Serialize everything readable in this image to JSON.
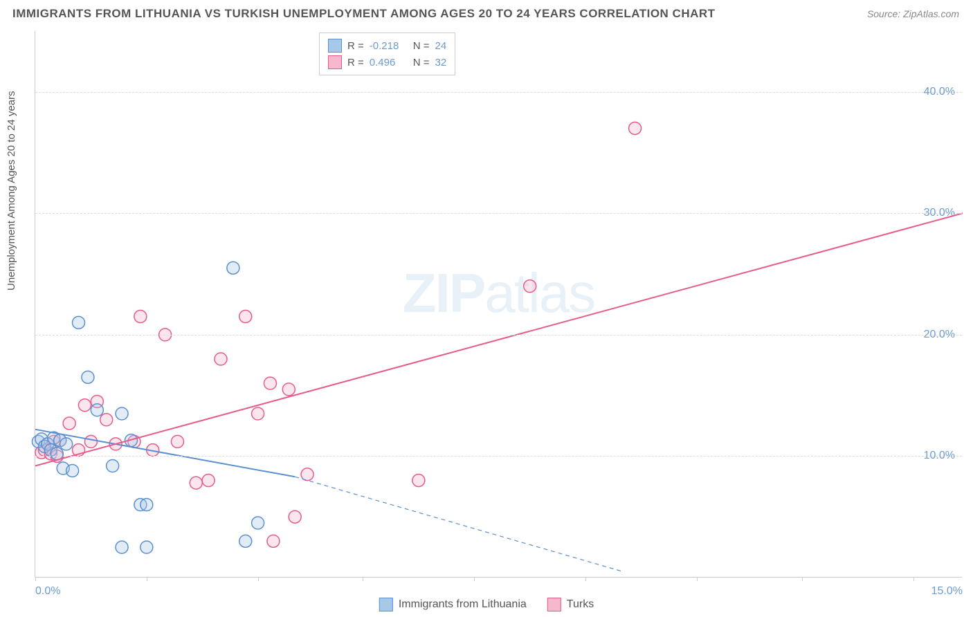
{
  "title": "IMMIGRANTS FROM LITHUANIA VS TURKISH UNEMPLOYMENT AMONG AGES 20 TO 24 YEARS CORRELATION CHART",
  "source": "Source: ZipAtlas.com",
  "ylabel": "Unemployment Among Ages 20 to 24 years",
  "watermark_a": "ZIP",
  "watermark_b": "atlas",
  "chart": {
    "type": "scatter",
    "background_color": "#ffffff",
    "grid_color": "#dddddd",
    "axis_color": "#cccccc",
    "xlim": [
      0,
      15
    ],
    "ylim": [
      0,
      45
    ],
    "x_ticks": [
      0,
      1.8,
      3.6,
      5.3,
      7.1,
      8.9,
      10.7,
      12.4,
      14.2
    ],
    "x_tick_labels": {
      "0": "0.0%",
      "15": "15.0%"
    },
    "y_gridlines": [
      10,
      20,
      30,
      40
    ],
    "y_tick_labels": {
      "10": "10.0%",
      "20": "20.0%",
      "30": "30.0%",
      "40": "40.0%"
    },
    "marker_radius": 9,
    "marker_stroke_width": 1.5,
    "marker_fill_opacity": 0.35,
    "line_width": 2,
    "series": [
      {
        "name": "Immigrants from Lithuania",
        "color_stroke": "#5a8fd0",
        "color_fill": "#a8c8e8",
        "r_value": "-0.218",
        "n_value": "24",
        "points": [
          [
            0.05,
            11.2
          ],
          [
            0.1,
            11.4
          ],
          [
            0.15,
            10.8
          ],
          [
            0.2,
            11.0
          ],
          [
            0.25,
            10.5
          ],
          [
            0.3,
            11.5
          ],
          [
            0.35,
            10.2
          ],
          [
            0.4,
            11.3
          ],
          [
            0.45,
            9.0
          ],
          [
            0.5,
            11.0
          ],
          [
            0.6,
            8.8
          ],
          [
            0.7,
            21.0
          ],
          [
            0.85,
            16.5
          ],
          [
            1.0,
            13.8
          ],
          [
            1.25,
            9.2
          ],
          [
            1.4,
            13.5
          ],
          [
            1.4,
            2.5
          ],
          [
            1.55,
            11.3
          ],
          [
            1.7,
            6.0
          ],
          [
            1.8,
            6.0
          ],
          [
            1.8,
            2.5
          ],
          [
            3.2,
            25.5
          ],
          [
            3.4,
            3.0
          ],
          [
            3.6,
            4.5
          ]
        ],
        "trend": {
          "x1": 0,
          "y1": 12.2,
          "x2": 4.2,
          "y2": 8.3,
          "x2_ext": 9.5,
          "y2_ext": 0.5
        }
      },
      {
        "name": "Turks",
        "color_stroke": "#e85a8a",
        "color_fill": "#f5b8cc",
        "r_value": "0.496",
        "n_value": "32",
        "points": [
          [
            0.1,
            10.3
          ],
          [
            0.15,
            10.5
          ],
          [
            0.2,
            11.0
          ],
          [
            0.25,
            10.2
          ],
          [
            0.3,
            11.2
          ],
          [
            0.35,
            10.0
          ],
          [
            0.4,
            11.3
          ],
          [
            0.55,
            12.7
          ],
          [
            0.7,
            10.5
          ],
          [
            0.8,
            14.2
          ],
          [
            0.9,
            11.2
          ],
          [
            1.0,
            14.5
          ],
          [
            1.15,
            13.0
          ],
          [
            1.3,
            11.0
          ],
          [
            1.6,
            11.2
          ],
          [
            1.7,
            21.5
          ],
          [
            1.9,
            10.5
          ],
          [
            2.1,
            20.0
          ],
          [
            2.3,
            11.2
          ],
          [
            2.6,
            7.8
          ],
          [
            2.8,
            8.0
          ],
          [
            3.0,
            18.0
          ],
          [
            3.4,
            21.5
          ],
          [
            3.6,
            13.5
          ],
          [
            3.8,
            16.0
          ],
          [
            3.85,
            3.0
          ],
          [
            4.1,
            15.5
          ],
          [
            4.2,
            5.0
          ],
          [
            4.4,
            8.5
          ],
          [
            6.2,
            8.0
          ],
          [
            8.0,
            24.0
          ],
          [
            9.7,
            37.0
          ]
        ],
        "trend": {
          "x1": 0,
          "y1": 9.2,
          "x2": 15,
          "y2": 30.0
        }
      }
    ]
  },
  "legend_top": {
    "rows": [
      {
        "swatch_fill": "#a8c8e8",
        "swatch_stroke": "#5a8fd0",
        "r": "-0.218",
        "n": "24"
      },
      {
        "swatch_fill": "#f5b8cc",
        "swatch_stroke": "#e85a8a",
        "r": "0.496",
        "n": "32"
      }
    ]
  },
  "legend_bottom": [
    {
      "swatch_fill": "#a8c8e8",
      "swatch_stroke": "#5a8fd0",
      "label": "Immigrants from Lithuania"
    },
    {
      "swatch_fill": "#f5b8cc",
      "swatch_stroke": "#e85a8a",
      "label": "Turks"
    }
  ],
  "labels": {
    "r_prefix": "R = ",
    "n_prefix": "N = "
  }
}
